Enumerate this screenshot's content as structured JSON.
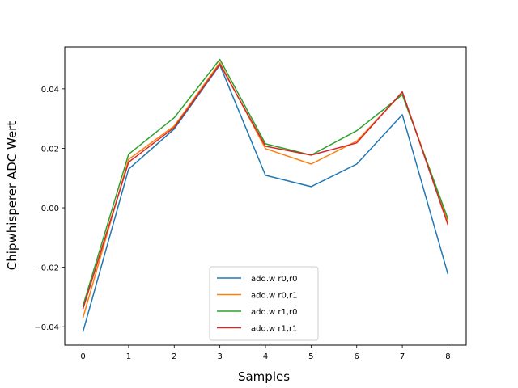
{
  "chart_data": {
    "type": "line",
    "title": "",
    "xlabel": "Samples",
    "ylabel": "Chipwhisperer ADC Wert",
    "x": [
      0,
      1,
      2,
      3,
      4,
      5,
      6,
      7,
      8
    ],
    "xticks": [
      "0",
      "1",
      "2",
      "3",
      "4",
      "5",
      "6",
      "7",
      "8"
    ],
    "yticks": [
      "−0.04",
      "−0.02",
      "0.00",
      "0.02",
      "0.04"
    ],
    "ytick_values": [
      -0.04,
      -0.02,
      0.0,
      0.02,
      0.04
    ],
    "xlim": [
      -0.4,
      8.4
    ],
    "ylim": [
      -0.0462,
      0.0541
    ],
    "grid": false,
    "legend_position": "lower center",
    "series": [
      {
        "name": "add.w r0,r0",
        "color": "#1f77b4",
        "values": [
          -0.0417,
          0.013,
          0.0265,
          0.048,
          0.0109,
          0.0071,
          0.0147,
          0.0313,
          -0.0224
        ]
      },
      {
        "name": "add.w r0,r1",
        "color": "#ff7f0e",
        "values": [
          -0.037,
          0.0163,
          0.0275,
          0.0488,
          0.0199,
          0.0147,
          0.0224,
          0.0387,
          -0.0045
        ]
      },
      {
        "name": "add.w r1,r0",
        "color": "#2ca02c",
        "values": [
          -0.033,
          0.018,
          0.0303,
          0.0499,
          0.0215,
          0.0177,
          0.0259,
          0.038,
          -0.0038
        ]
      },
      {
        "name": "add.w r1,r1",
        "color": "#d62728",
        "values": [
          -0.034,
          0.0153,
          0.027,
          0.0483,
          0.0207,
          0.0177,
          0.0218,
          0.039,
          -0.0058
        ]
      }
    ]
  }
}
